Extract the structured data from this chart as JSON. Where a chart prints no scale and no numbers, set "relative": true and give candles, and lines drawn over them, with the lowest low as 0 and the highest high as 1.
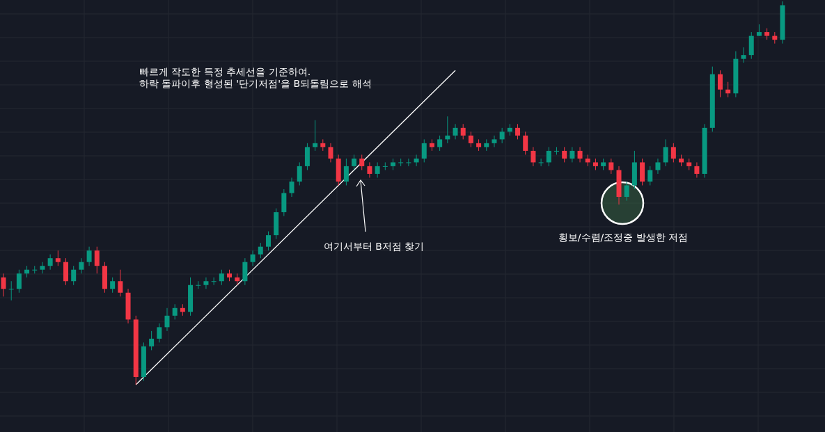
{
  "chart_data": {
    "type": "candlestick",
    "relative": true,
    "grid": true,
    "categories": [
      null,
      null,
      null,
      null,
      null,
      null,
      null,
      null,
      null,
      null,
      null,
      null,
      null,
      null,
      null,
      null,
      null,
      null,
      null,
      null,
      null,
      null,
      null,
      null,
      null,
      null,
      null,
      null,
      null,
      null,
      null,
      null,
      null,
      null,
      null,
      null,
      null,
      null,
      null,
      null,
      null,
      null,
      null,
      null,
      null,
      null,
      null,
      null,
      null,
      null,
      null,
      null,
      null,
      null,
      null,
      null,
      null,
      null,
      null,
      null,
      null,
      null,
      null,
      null,
      null,
      null,
      null,
      null,
      null,
      null,
      null,
      null,
      null,
      null,
      null,
      null,
      null,
      null,
      null,
      null,
      null,
      null,
      null,
      null,
      null,
      null,
      null,
      null,
      null,
      null,
      null,
      null,
      null,
      null,
      null,
      null,
      null,
      null,
      null,
      null,
      null
    ],
    "ohlc": [
      [
        0.28,
        0.29,
        0.23,
        0.25
      ],
      [
        0.25,
        0.27,
        0.22,
        0.25
      ],
      [
        0.25,
        0.3,
        0.24,
        0.29
      ],
      [
        0.29,
        0.31,
        0.28,
        0.3
      ],
      [
        0.3,
        0.31,
        0.29,
        0.3
      ],
      [
        0.3,
        0.32,
        0.29,
        0.31
      ],
      [
        0.31,
        0.34,
        0.3,
        0.33
      ],
      [
        0.33,
        0.35,
        0.31,
        0.32
      ],
      [
        0.32,
        0.33,
        0.26,
        0.27
      ],
      [
        0.27,
        0.31,
        0.26,
        0.3
      ],
      [
        0.3,
        0.33,
        0.29,
        0.32
      ],
      [
        0.32,
        0.36,
        0.31,
        0.35
      ],
      [
        0.35,
        0.36,
        0.29,
        0.31
      ],
      [
        0.31,
        0.32,
        0.24,
        0.25
      ],
      [
        0.25,
        0.28,
        0.24,
        0.27
      ],
      [
        0.27,
        0.3,
        0.23,
        0.24
      ],
      [
        0.24,
        0.25,
        0.16,
        0.17
      ],
      [
        0.17,
        0.18,
        0.0,
        0.02
      ],
      [
        0.02,
        0.11,
        0.01,
        0.1
      ],
      [
        0.1,
        0.14,
        0.09,
        0.12
      ],
      [
        0.12,
        0.16,
        0.11,
        0.15
      ],
      [
        0.15,
        0.2,
        0.14,
        0.18
      ],
      [
        0.18,
        0.21,
        0.17,
        0.2
      ],
      [
        0.2,
        0.21,
        0.18,
        0.19
      ],
      [
        0.19,
        0.28,
        0.18,
        0.26
      ],
      [
        0.26,
        0.27,
        0.25,
        0.26
      ],
      [
        0.26,
        0.28,
        0.25,
        0.27
      ],
      [
        0.27,
        0.28,
        0.26,
        0.27
      ],
      [
        0.27,
        0.3,
        0.26,
        0.29
      ],
      [
        0.29,
        0.3,
        0.27,
        0.28
      ],
      [
        0.28,
        0.29,
        0.26,
        0.27
      ],
      [
        0.27,
        0.33,
        0.26,
        0.32
      ],
      [
        0.32,
        0.35,
        0.31,
        0.34
      ],
      [
        0.34,
        0.37,
        0.33,
        0.36
      ],
      [
        0.36,
        0.4,
        0.35,
        0.39
      ],
      [
        0.39,
        0.46,
        0.38,
        0.45
      ],
      [
        0.45,
        0.51,
        0.44,
        0.5
      ],
      [
        0.5,
        0.54,
        0.49,
        0.53
      ],
      [
        0.53,
        0.58,
        0.52,
        0.57
      ],
      [
        0.57,
        0.63,
        0.56,
        0.62
      ],
      [
        0.62,
        0.69,
        0.61,
        0.63
      ],
      [
        0.63,
        0.64,
        0.61,
        0.62
      ],
      [
        0.62,
        0.63,
        0.58,
        0.59
      ],
      [
        0.59,
        0.6,
        0.52,
        0.53
      ],
      [
        0.53,
        0.59,
        0.52,
        0.57
      ],
      [
        0.57,
        0.6,
        0.56,
        0.59
      ],
      [
        0.59,
        0.6,
        0.56,
        0.57
      ],
      [
        0.57,
        0.58,
        0.54,
        0.55
      ],
      [
        0.55,
        0.58,
        0.54,
        0.57
      ],
      [
        0.57,
        0.58,
        0.56,
        0.57
      ],
      [
        0.57,
        0.59,
        0.56,
        0.58
      ],
      [
        0.58,
        0.59,
        0.57,
        0.58
      ],
      [
        0.58,
        0.59,
        0.57,
        0.58
      ],
      [
        0.58,
        0.6,
        0.57,
        0.59
      ],
      [
        0.59,
        0.64,
        0.58,
        0.63
      ],
      [
        0.63,
        0.64,
        0.61,
        0.62
      ],
      [
        0.62,
        0.65,
        0.61,
        0.64
      ],
      [
        0.64,
        0.7,
        0.63,
        0.65
      ],
      [
        0.65,
        0.68,
        0.64,
        0.67
      ],
      [
        0.67,
        0.68,
        0.64,
        0.65
      ],
      [
        0.65,
        0.66,
        0.62,
        0.63
      ],
      [
        0.63,
        0.64,
        0.61,
        0.62
      ],
      [
        0.62,
        0.64,
        0.61,
        0.63
      ],
      [
        0.63,
        0.65,
        0.62,
        0.64
      ],
      [
        0.64,
        0.67,
        0.63,
        0.66
      ],
      [
        0.66,
        0.68,
        0.65,
        0.67
      ],
      [
        0.67,
        0.68,
        0.64,
        0.65
      ],
      [
        0.65,
        0.66,
        0.6,
        0.61
      ],
      [
        0.61,
        0.62,
        0.57,
        0.58
      ],
      [
        0.58,
        0.59,
        0.57,
        0.58
      ],
      [
        0.58,
        0.62,
        0.57,
        0.61
      ],
      [
        0.61,
        0.62,
        0.6,
        0.61
      ],
      [
        0.61,
        0.62,
        0.58,
        0.59
      ],
      [
        0.59,
        0.62,
        0.58,
        0.61
      ],
      [
        0.61,
        0.62,
        0.58,
        0.59
      ],
      [
        0.59,
        0.6,
        0.57,
        0.58
      ],
      [
        0.58,
        0.59,
        0.56,
        0.57
      ],
      [
        0.57,
        0.59,
        0.56,
        0.58
      ],
      [
        0.58,
        0.59,
        0.55,
        0.56
      ],
      [
        0.56,
        0.57,
        0.47,
        0.49
      ],
      [
        0.49,
        0.53,
        0.48,
        0.52
      ],
      [
        0.52,
        0.61,
        0.51,
        0.58
      ],
      [
        0.58,
        0.59,
        0.52,
        0.53
      ],
      [
        0.53,
        0.57,
        0.52,
        0.56
      ],
      [
        0.56,
        0.59,
        0.55,
        0.58
      ],
      [
        0.58,
        0.64,
        0.57,
        0.62
      ],
      [
        0.62,
        0.63,
        0.58,
        0.59
      ],
      [
        0.59,
        0.6,
        0.57,
        0.58
      ],
      [
        0.58,
        0.59,
        0.56,
        0.57
      ],
      [
        0.57,
        0.58,
        0.54,
        0.55
      ],
      [
        0.55,
        0.68,
        0.54,
        0.67
      ],
      [
        0.67,
        0.83,
        0.66,
        0.81
      ],
      [
        0.81,
        0.82,
        0.75,
        0.77
      ],
      [
        0.77,
        0.79,
        0.75,
        0.76
      ],
      [
        0.76,
        0.87,
        0.75,
        0.85
      ],
      [
        0.85,
        0.88,
        0.84,
        0.86
      ],
      [
        0.86,
        0.92,
        0.85,
        0.91
      ],
      [
        0.91,
        0.94,
        0.91,
        0.92
      ],
      [
        0.92,
        0.93,
        0.9,
        0.91
      ],
      [
        0.91,
        0.92,
        0.89,
        0.9
      ],
      [
        0.9,
        1.0,
        0.89,
        0.99
      ]
    ],
    "series": [
      {
        "type": "line",
        "color": "#ffffff",
        "values": [
          null,
          null,
          null,
          null,
          null,
          null,
          null,
          null,
          null,
          null,
          null,
          null,
          null,
          null,
          null,
          null,
          null,
          0.0,
          null,
          null,
          null,
          null,
          null,
          null,
          null,
          null,
          null,
          null,
          null,
          null,
          null,
          null,
          null,
          null,
          null,
          null,
          null,
          null,
          null,
          null,
          null,
          null,
          null,
          null,
          null,
          null,
          null,
          null,
          null,
          null,
          null,
          null,
          null,
          null,
          null,
          null,
          null,
          null,
          0.82,
          null,
          null,
          null,
          null,
          null,
          null,
          null,
          null,
          null,
          null,
          null,
          null,
          null,
          null,
          null,
          null,
          null,
          null,
          null,
          null,
          null,
          null,
          null,
          null,
          null,
          null,
          null,
          null,
          null,
          null,
          null,
          null,
          null,
          null,
          null,
          null,
          null,
          null,
          null,
          null,
          null,
          null
        ]
      }
    ],
    "annotations": [
      "빠르게 작도한 특정 추세선을 기준하여.",
      "하락 돌파이후 형성된 '단기저점'을 B되돌림으로 해석",
      "여기서부터 B저점 찾기",
      "횡보/수렴/조정중 발생한 저점"
    ]
  }
}
